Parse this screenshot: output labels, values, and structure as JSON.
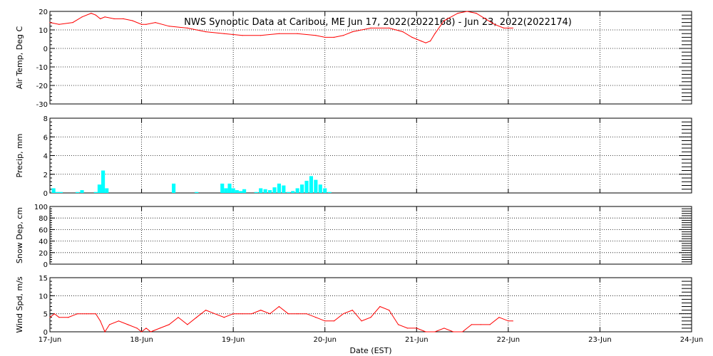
{
  "title": "NWS Synoptic Data at Caribou, ME   Jun 17, 2022(2022168) - Jun 23, 2022(2022174)",
  "xlabel": "Date (EST)",
  "x_ticks": [
    "17-Jun",
    "18-Jun",
    "19-Jun",
    "20-Jun",
    "21-Jun",
    "22-Jun",
    "23-Jun",
    "24-Jun"
  ],
  "colors": {
    "line": "#ff0000",
    "bar": "#00ffff",
    "grid": "#000000"
  },
  "chart_data": [
    {
      "type": "line",
      "ylabel": "Air Temp, Deg C",
      "ylim": [
        -30,
        20
      ],
      "yticks": [
        -30,
        -20,
        -10,
        0,
        10,
        20
      ],
      "xlim": [
        0,
        7
      ],
      "grid": true,
      "x": [
        0,
        0.1,
        0.25,
        0.35,
        0.45,
        0.5,
        0.55,
        0.6,
        0.7,
        0.8,
        0.9,
        1.0,
        1.05,
        1.15,
        1.3,
        1.5,
        1.7,
        1.9,
        2.1,
        2.3,
        2.5,
        2.7,
        2.9,
        3.0,
        3.1,
        3.2,
        3.3,
        3.5,
        3.7,
        3.85,
        3.95,
        4.05,
        4.1,
        4.15,
        4.2,
        4.3,
        4.45,
        4.55,
        4.65,
        4.75,
        4.85,
        4.95,
        5.05
      ],
      "y": [
        14,
        13,
        14,
        17,
        19,
        18,
        16,
        17,
        16,
        16,
        15,
        13,
        13,
        14,
        12,
        11,
        9,
        8,
        7,
        7,
        8,
        8,
        7,
        6,
        6,
        7,
        9,
        11,
        11,
        9,
        6,
        4,
        3,
        4,
        8,
        15,
        19,
        20,
        19,
        16,
        13,
        11,
        11
      ]
    },
    {
      "type": "bar",
      "ylabel": "Precip, mm",
      "ylim": [
        0,
        8
      ],
      "yticks": [
        0,
        2,
        4,
        6,
        8
      ],
      "xlim": [
        0,
        7
      ],
      "grid": true,
      "x": [
        0.04,
        0.08,
        0.12,
        0.3,
        0.35,
        0.5,
        0.54,
        0.58,
        0.62,
        1.35,
        1.6,
        1.88,
        1.92,
        1.96,
        2.0,
        2.04,
        2.08,
        2.12,
        2.25,
        2.3,
        2.35,
        2.4,
        2.45,
        2.5,
        2.55,
        2.6,
        2.65,
        2.7,
        2.75,
        2.8,
        2.85,
        2.9,
        2.95,
        3.0,
        3.05
      ],
      "values": [
        0.5,
        0.1,
        0.1,
        0.1,
        0.3,
        0.1,
        0.9,
        2.4,
        0.5,
        1.0,
        0.1,
        1.0,
        0.5,
        1.0,
        0.5,
        0.3,
        0.2,
        0.4,
        0.1,
        0.5,
        0.4,
        0.3,
        0.6,
        1.0,
        0.8,
        0.1,
        0.2,
        0.5,
        0.9,
        1.3,
        1.8,
        1.4,
        0.9,
        0.5,
        0.1
      ]
    },
    {
      "type": "line",
      "ylabel": "Snow Dep, cm",
      "ylim": [
        0,
        100
      ],
      "yticks": [
        0,
        20,
        40,
        60,
        80,
        100
      ],
      "xlim": [
        0,
        7
      ],
      "grid": true,
      "x": [],
      "y": []
    },
    {
      "type": "line",
      "ylabel": "Wind Spd, m/s",
      "ylim": [
        0,
        15
      ],
      "yticks": [
        0,
        5,
        10,
        15
      ],
      "xlim": [
        0,
        7
      ],
      "grid": true,
      "x": [
        0,
        0.05,
        0.1,
        0.2,
        0.3,
        0.4,
        0.45,
        0.5,
        0.55,
        0.6,
        0.65,
        0.75,
        0.85,
        0.95,
        1.0,
        1.05,
        1.1,
        1.2,
        1.3,
        1.4,
        1.5,
        1.6,
        1.7,
        1.8,
        1.9,
        2.0,
        2.1,
        2.2,
        2.3,
        2.4,
        2.5,
        2.6,
        2.7,
        2.8,
        2.9,
        3.0,
        3.1,
        3.2,
        3.3,
        3.4,
        3.5,
        3.6,
        3.7,
        3.8,
        3.9,
        4.0,
        4.1,
        4.2,
        4.3,
        4.4,
        4.5,
        4.6,
        4.7,
        4.8,
        4.9,
        5.0,
        5.05
      ],
      "y": [
        4,
        5,
        4,
        4,
        5,
        5,
        5,
        5,
        3,
        0,
        2,
        3,
        2,
        1,
        0,
        1,
        0,
        1,
        2,
        4,
        2,
        4,
        6,
        5,
        4,
        5,
        5,
        5,
        6,
        5,
        7,
        5,
        5,
        5,
        4,
        3,
        3,
        5,
        6,
        3,
        4,
        7,
        6,
        2,
        1,
        1,
        0,
        0,
        1,
        0,
        0,
        2,
        2,
        2,
        4,
        3,
        3
      ]
    }
  ]
}
